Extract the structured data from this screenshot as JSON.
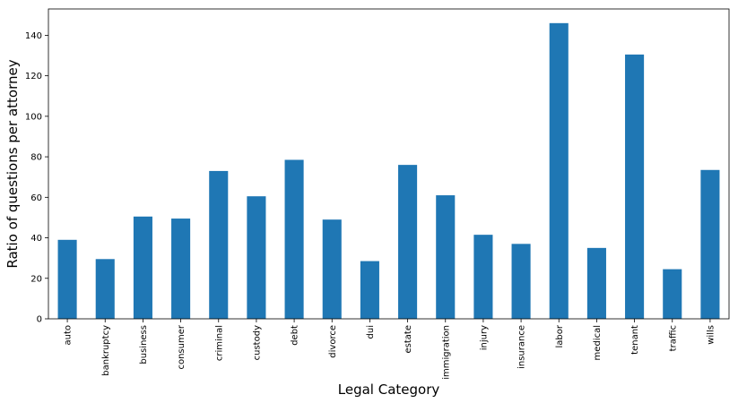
{
  "chart_data": {
    "type": "bar",
    "categories": [
      "auto",
      "bankruptcy",
      "business",
      "consumer",
      "criminal",
      "custody",
      "debt",
      "divorce",
      "dui",
      "estate",
      "immigration",
      "injury",
      "insurance",
      "labor",
      "medical",
      "tenant",
      "traffic",
      "wills"
    ],
    "values": [
      39,
      29.5,
      50.5,
      49.5,
      73,
      60.5,
      78.5,
      49,
      28.5,
      76,
      61,
      41.5,
      37,
      146,
      35,
      130.5,
      24.5,
      73.5
    ],
    "xlabel": "Legal Category",
    "ylabel": "Ratio of questions per attorney",
    "ylim": [
      0,
      153
    ],
    "yticks": [
      0,
      20,
      40,
      60,
      80,
      100,
      120,
      140
    ],
    "grid": false,
    "legend": "none",
    "bar_color": "#1f77b4"
  }
}
